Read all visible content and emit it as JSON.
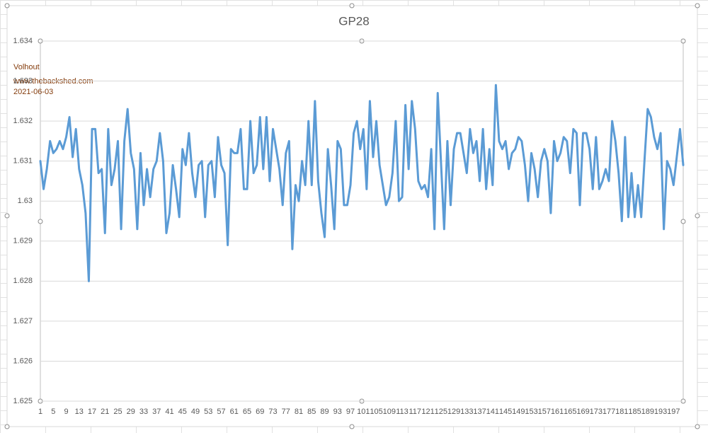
{
  "chart_data": {
    "type": "line",
    "title": "GP28",
    "annotations": [
      "Volhout",
      "www.thebackshed.com",
      "2021-06-03"
    ],
    "color": "#5b9bd5",
    "grid": true,
    "ylim": [
      1.625,
      1.634
    ],
    "yticks": [
      1.625,
      1.626,
      1.627,
      1.628,
      1.629,
      1.63,
      1.631,
      1.632,
      1.633,
      1.634
    ],
    "categories": [
      1,
      null,
      null,
      null,
      5,
      null,
      null,
      null,
      9,
      null,
      null,
      null,
      13,
      null,
      null,
      null,
      17,
      null,
      null,
      null,
      21,
      null,
      null,
      null,
      25,
      null,
      null,
      null,
      29,
      null,
      null,
      null,
      33,
      null,
      null,
      null,
      37,
      null,
      null,
      null,
      41,
      null,
      null,
      null,
      45,
      null,
      null,
      null,
      49,
      null,
      null,
      null,
      53,
      null,
      null,
      null,
      57,
      null,
      null,
      null,
      61,
      null,
      null,
      null,
      65,
      null,
      null,
      null,
      69,
      null,
      null,
      null,
      73,
      null,
      null,
      null,
      77,
      null,
      null,
      null,
      81,
      null,
      null,
      null,
      85,
      null,
      null,
      null,
      89,
      null,
      null,
      null,
      93,
      null,
      null,
      null,
      97,
      null,
      null,
      null,
      101,
      null,
      null,
      null,
      105,
      null,
      null,
      null,
      109,
      null,
      null,
      null,
      113,
      null,
      null,
      null,
      117,
      null,
      null,
      null,
      121,
      null,
      null,
      null,
      125,
      null,
      null,
      null,
      129,
      null,
      null,
      null,
      133,
      null,
      null,
      null,
      137,
      null,
      null,
      null,
      141,
      null,
      null,
      null,
      145,
      null,
      null,
      null,
      149,
      null,
      null,
      null,
      153,
      null,
      null,
      null,
      157,
      null,
      null,
      null,
      161,
      null,
      null,
      null,
      165,
      null,
      null,
      null,
      169,
      null,
      null,
      null,
      173,
      null,
      null,
      null,
      177,
      null,
      null,
      null,
      181,
      null,
      null,
      null,
      185,
      null,
      null,
      null,
      189,
      null,
      null,
      null,
      193,
      null,
      null,
      null,
      197,
      null,
      null,
      null
    ],
    "values": [
      1.631,
      1.6303,
      1.6308,
      1.6315,
      1.6312,
      1.6313,
      1.6315,
      1.6313,
      1.6316,
      1.6321,
      1.6311,
      1.6318,
      1.6308,
      1.6304,
      1.6297,
      1.628,
      1.6318,
      1.6318,
      1.6307,
      1.6308,
      1.6292,
      1.6318,
      1.6304,
      1.6308,
      1.6315,
      1.6293,
      1.6315,
      1.6323,
      1.6312,
      1.6308,
      1.6293,
      1.6312,
      1.6299,
      1.6308,
      1.6301,
      1.6308,
      1.631,
      1.6317,
      1.631,
      1.6292,
      1.6297,
      1.6309,
      1.6303,
      1.6296,
      1.6313,
      1.6309,
      1.6317,
      1.6307,
      1.6301,
      1.6309,
      1.631,
      1.6296,
      1.6309,
      1.631,
      1.6301,
      1.6316,
      1.6309,
      1.6307,
      1.6289,
      1.6313,
      1.6312,
      1.6312,
      1.6318,
      1.6303,
      1.6303,
      1.632,
      1.6307,
      1.6309,
      1.6321,
      1.6308,
      1.6321,
      1.6305,
      1.6318,
      1.6313,
      1.6308,
      1.6299,
      1.6312,
      1.6315,
      1.6288,
      1.6304,
      1.63,
      1.631,
      1.6304,
      1.632,
      1.6304,
      1.6325,
      1.6305,
      1.6297,
      1.6291,
      1.6313,
      1.6304,
      1.6293,
      1.6315,
      1.6313,
      1.6299,
      1.6299,
      1.6304,
      1.6317,
      1.632,
      1.6313,
      1.6318,
      1.6303,
      1.6325,
      1.6311,
      1.632,
      1.6309,
      1.6304,
      1.6299,
      1.6301,
      1.6307,
      1.632,
      1.63,
      1.6301,
      1.6324,
      1.6308,
      1.6325,
      1.6318,
      1.6305,
      1.6303,
      1.6304,
      1.6301,
      1.6313,
      1.6293,
      1.6327,
      1.631,
      1.6293,
      1.6315,
      1.6299,
      1.6313,
      1.6317,
      1.6317,
      1.6312,
      1.6307,
      1.6318,
      1.6312,
      1.6315,
      1.6305,
      1.6318,
      1.6303,
      1.6313,
      1.6304,
      1.6329,
      1.6315,
      1.6313,
      1.6315,
      1.6308,
      1.6312,
      1.6313,
      1.6316,
      1.6315,
      1.6309,
      1.63,
      1.6312,
      1.6308,
      1.6301,
      1.631,
      1.6313,
      1.631,
      1.6297,
      1.6315,
      1.631,
      1.6312,
      1.6316,
      1.6315,
      1.6307,
      1.6318,
      1.6317,
      1.6299,
      1.6317,
      1.6317,
      1.6313,
      1.6303,
      1.6316,
      1.6303,
      1.6305,
      1.6308,
      1.6305,
      1.632,
      1.6315,
      1.6307,
      1.6295,
      1.6316,
      1.6296,
      1.6307,
      1.6296,
      1.6304,
      1.6296,
      1.631,
      1.6323,
      1.6321,
      1.6316,
      1.6313,
      1.6317,
      1.6293,
      1.631,
      1.6308,
      1.6304,
      1.6311,
      1.6318,
      1.6309
    ]
  }
}
